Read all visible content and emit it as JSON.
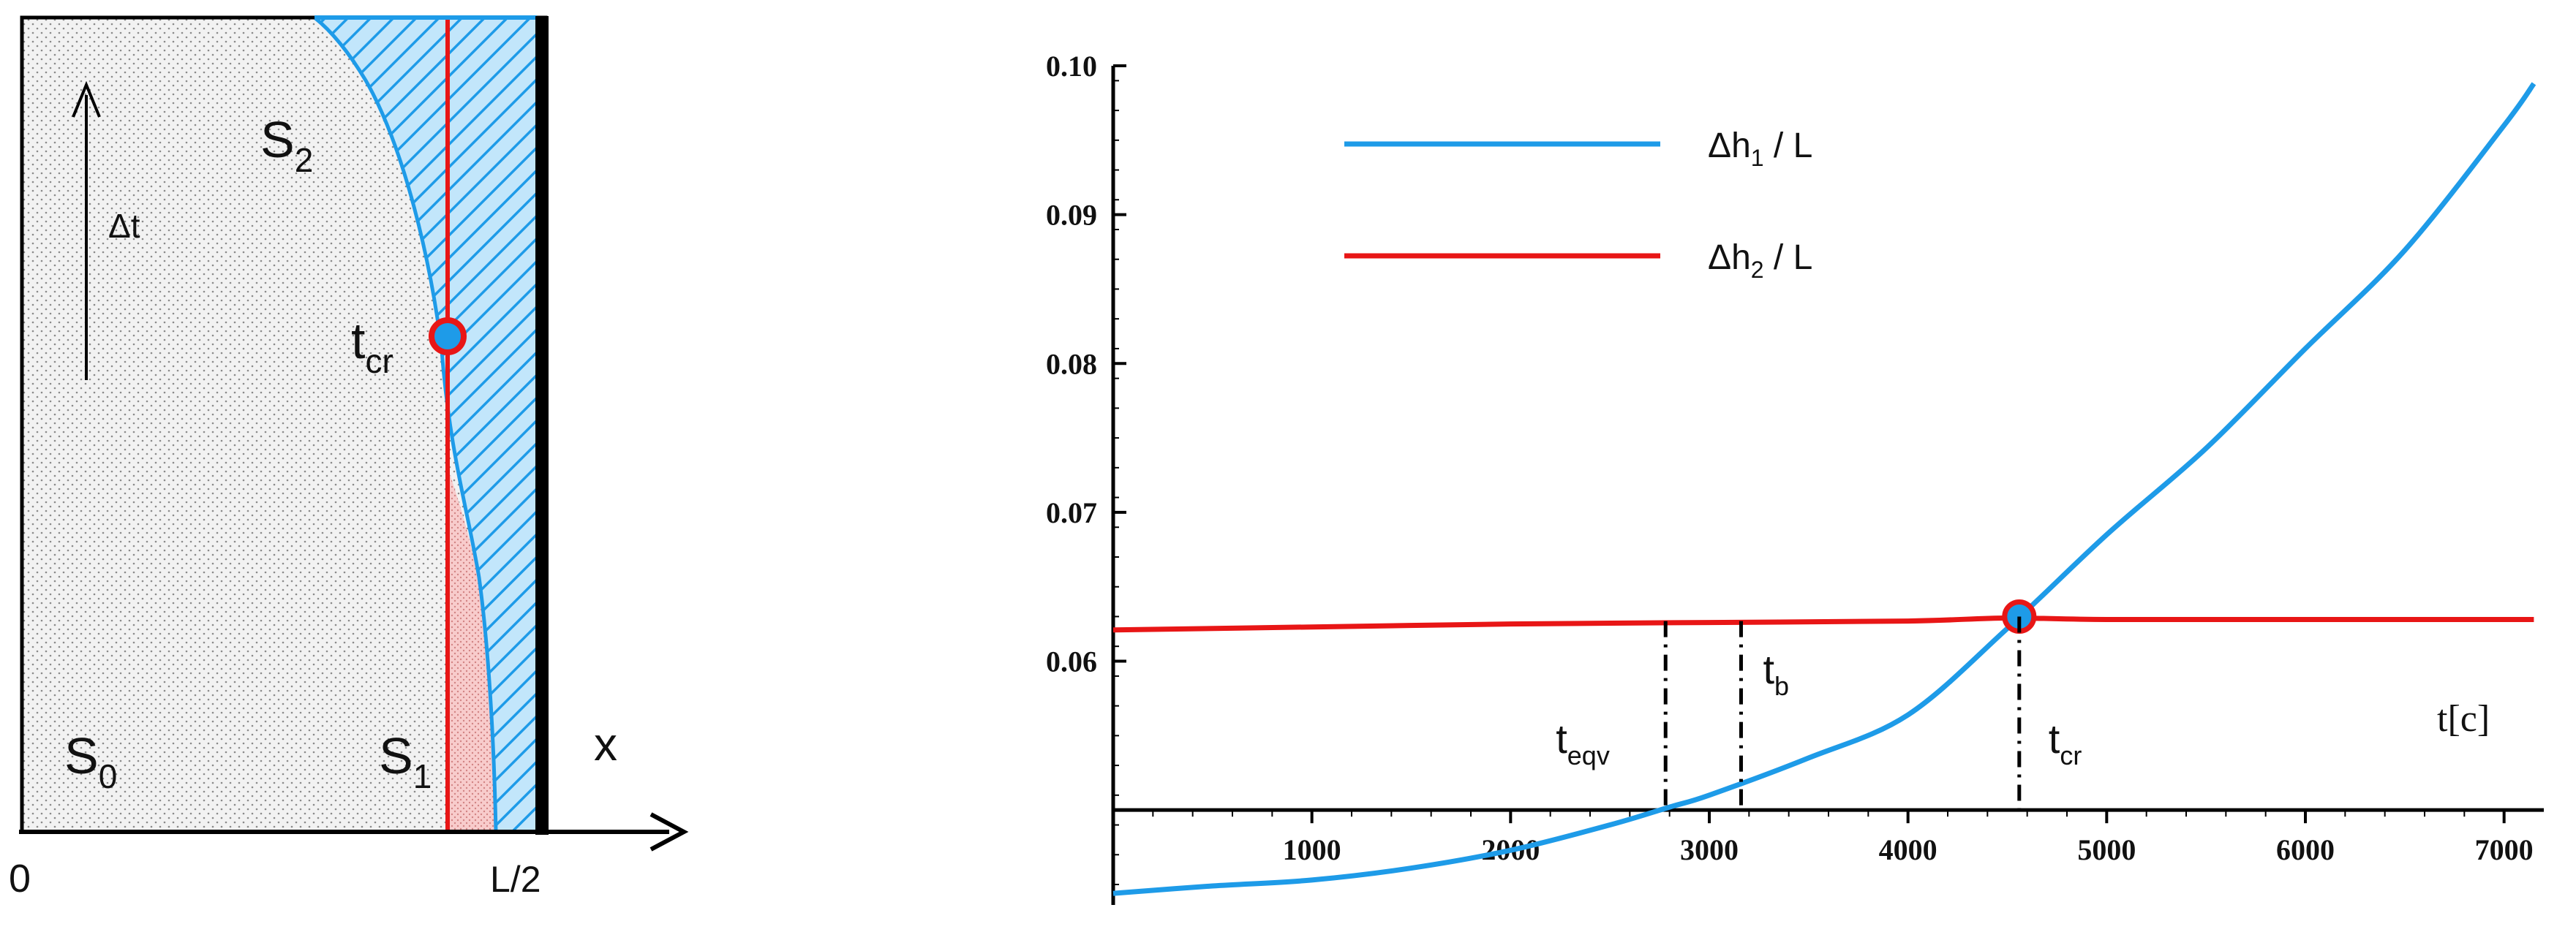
{
  "colors": {
    "blue": "#1e9be8",
    "red": "#e81616",
    "black": "#000000",
    "light_blue": "#c2e6fb",
    "pink": "#f8cccc"
  },
  "diagram": {
    "s0_main": "S",
    "s0_sub": "0",
    "s1_main": "S",
    "s1_sub": "1",
    "s2_main": "S",
    "s2_sub": "2",
    "dt_label": "Δt",
    "tcr_main": "t",
    "tcr_sub": "cr",
    "x_label": "x",
    "origin_label": "0",
    "half_label": "L/2"
  },
  "chart_data": {
    "type": "line",
    "xlabel": "t[c]",
    "ylabel": "",
    "xlim": [
      0,
      7200
    ],
    "ylim": [
      0.045,
      0.1
    ],
    "x_ticks": [
      1000,
      2000,
      3000,
      4000,
      5000,
      6000,
      7000
    ],
    "x_tick_labels": [
      "1000",
      "2000",
      "3000",
      "4000",
      "5000",
      "6000",
      "7000"
    ],
    "y_ticks": [
      0.06,
      0.07,
      0.08,
      0.09,
      0.1
    ],
    "y_tick_labels": [
      "0.06",
      "0.07",
      "0.08",
      "0.09",
      "0.10"
    ],
    "axis_y_value": 0.05,
    "legend_position": "top-left",
    "series": [
      {
        "name": "Δh₁ / L",
        "legend_main": "Δh",
        "legend_sub": "1",
        "legend_rest": " / L",
        "color": "#1e9be8",
        "x": [
          0,
          500,
          1000,
          1500,
          2000,
          2500,
          2800,
          3000,
          3500,
          4000,
          4500,
          5000,
          5500,
          6000,
          6500,
          7000,
          7150
        ],
        "y": [
          0.0444,
          0.0449,
          0.0453,
          0.0461,
          0.0473,
          0.049,
          0.0502,
          0.051,
          0.0535,
          0.0564,
          0.0622,
          0.0685,
          0.0743,
          0.081,
          0.0876,
          0.096,
          0.0988
        ]
      },
      {
        "name": "Δh₂ / L",
        "legend_main": "Δh",
        "legend_sub": "2",
        "legend_rest": " / L",
        "color": "#e81616",
        "x": [
          0,
          1000,
          2000,
          3000,
          4000,
          4500,
          5000,
          6000,
          7150
        ],
        "y": [
          0.0621,
          0.0623,
          0.0625,
          0.0626,
          0.0627,
          0.0629,
          0.0628,
          0.0628,
          0.0628
        ]
      }
    ],
    "markers": [
      {
        "label_main": "t",
        "label_sub": "eqv",
        "x": 2780,
        "y": 0.0627
      },
      {
        "label_main": "t",
        "label_sub": "b",
        "x": 3160,
        "y": 0.0627
      },
      {
        "label_main": "t",
        "label_sub": "cr",
        "x": 4560,
        "y": 0.063
      }
    ],
    "intersection": {
      "x": 4560,
      "y": 0.063
    }
  }
}
